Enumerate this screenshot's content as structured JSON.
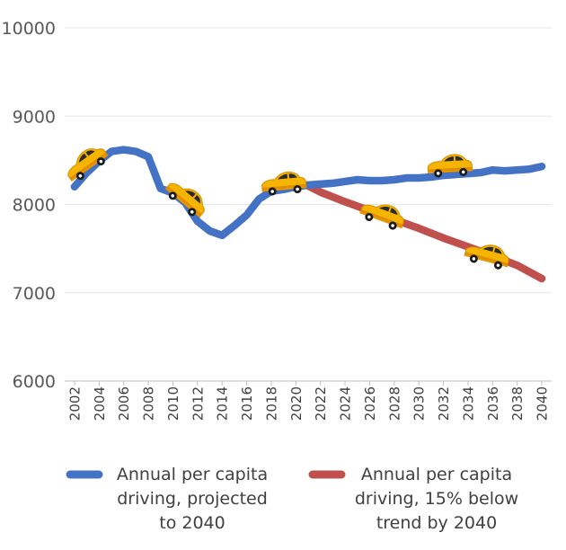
{
  "chart_data": {
    "type": "line",
    "title": "",
    "xlabel": "",
    "ylabel": "",
    "ylim": [
      6000,
      10000
    ],
    "yticks": [
      6000,
      7000,
      8000,
      9000,
      10000
    ],
    "xticks": [
      "2002",
      "2004",
      "2006",
      "2008",
      "2010",
      "2012",
      "2014",
      "2016",
      "2018",
      "2020",
      "2022",
      "2024",
      "2026",
      "2028",
      "2030",
      "2032",
      "2034",
      "2036",
      "2038",
      "2040"
    ],
    "grid": true,
    "legend_position": "bottom",
    "series": [
      {
        "name": "Annual per capita driving, projected to 2040",
        "legend_lines": [
          "Annual per capita",
          "driving, projected",
          "to 2040"
        ],
        "color": "#4472c4",
        "points": [
          [
            2002,
            8200
          ],
          [
            2003,
            8360
          ],
          [
            2004,
            8490
          ],
          [
            2005,
            8600
          ],
          [
            2006,
            8620
          ],
          [
            2007,
            8600
          ],
          [
            2008,
            8540
          ],
          [
            2009,
            8180
          ],
          [
            2010,
            8130
          ],
          [
            2011,
            8020
          ],
          [
            2012,
            7810
          ],
          [
            2013,
            7700
          ],
          [
            2014,
            7650
          ],
          [
            2015,
            7760
          ],
          [
            2016,
            7880
          ],
          [
            2017,
            8060
          ],
          [
            2018,
            8150
          ],
          [
            2019,
            8170
          ],
          [
            2020,
            8200
          ],
          [
            2021,
            8220
          ],
          [
            2022,
            8230
          ],
          [
            2023,
            8240
          ],
          [
            2024,
            8260
          ],
          [
            2025,
            8280
          ],
          [
            2026,
            8270
          ],
          [
            2027,
            8270
          ],
          [
            2028,
            8280
          ],
          [
            2029,
            8300
          ],
          [
            2030,
            8300
          ],
          [
            2031,
            8310
          ],
          [
            2032,
            8330
          ],
          [
            2033,
            8340
          ],
          [
            2034,
            8350
          ],
          [
            2035,
            8360
          ],
          [
            2036,
            8390
          ],
          [
            2037,
            8380
          ],
          [
            2038,
            8390
          ],
          [
            2039,
            8400
          ],
          [
            2040,
            8430
          ]
        ]
      },
      {
        "name": "Annual per capita driving, 15% below trend by 2040",
        "legend_lines": [
          "Annual per capita",
          "driving, 15% below",
          "trend by 2040"
        ],
        "color": "#c0504d",
        "points": [
          [
            2021,
            8210
          ],
          [
            2022,
            8140
          ],
          [
            2024,
            8030
          ],
          [
            2026,
            7930
          ],
          [
            2028,
            7830
          ],
          [
            2030,
            7730
          ],
          [
            2032,
            7620
          ],
          [
            2034,
            7520
          ],
          [
            2036,
            7420
          ],
          [
            2038,
            7310
          ],
          [
            2040,
            7160
          ]
        ]
      }
    ],
    "decorations": [
      {
        "icon": "taxi-car-icon",
        "x": 2003,
        "y": 8450,
        "angle": -35
      },
      {
        "icon": "taxi-car-icon",
        "x": 2011,
        "y": 8060,
        "angle": 40
      },
      {
        "icon": "taxi-car-icon",
        "x": 2019,
        "y": 8220,
        "angle": -5
      },
      {
        "icon": "taxi-car-icon",
        "x": 2027,
        "y": 7870,
        "angle": 20
      },
      {
        "icon": "taxi-car-icon",
        "x": 2032.5,
        "y": 8420,
        "angle": -3
      },
      {
        "icon": "taxi-car-icon",
        "x": 2035.5,
        "y": 7410,
        "angle": 15
      }
    ]
  }
}
